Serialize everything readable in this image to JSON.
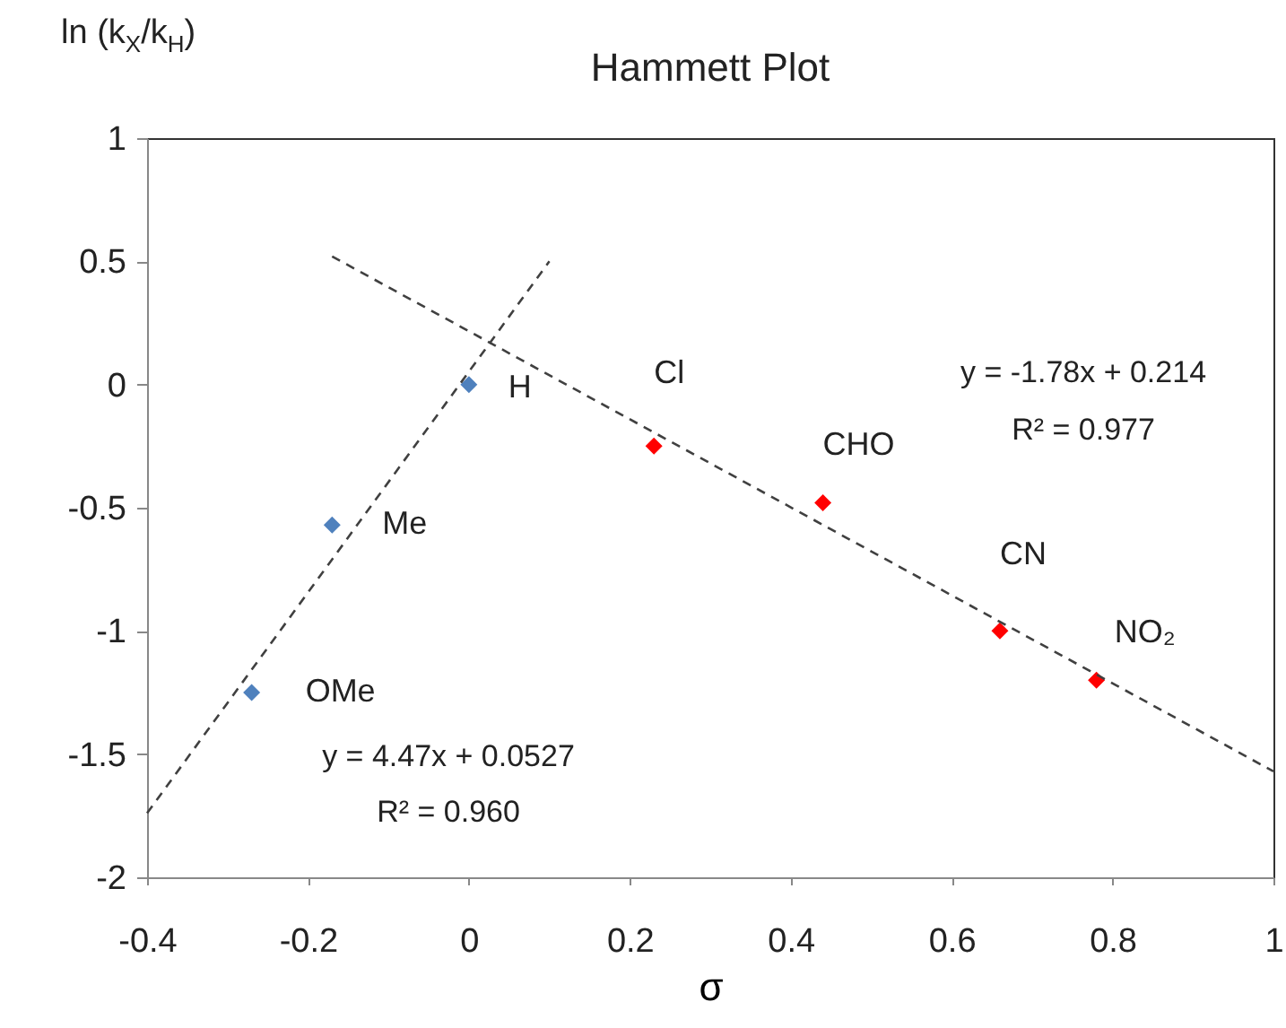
{
  "chart_data": {
    "type": "scatter",
    "title": "Hammett Plot",
    "xlabel": "σ",
    "ylabel": "ln (k$_{X}$/k$_{H}$)",
    "xlim": [
      -0.4,
      1
    ],
    "xticks": [
      -0.4,
      -0.2,
      0,
      0.2,
      0.4,
      0.6,
      0.8,
      1
    ],
    "ylim": [
      -2,
      1
    ],
    "yticks": [
      -2,
      -1.5,
      -1,
      -0.5,
      0,
      0.5,
      1
    ],
    "grid": false,
    "marker": "diamond",
    "line_style": "dashed",
    "series": [
      {
        "color": "#4f81bd",
        "x": [
          -0.27,
          -0.17,
          0
        ],
        "values": [
          -1.25,
          -0.57,
          0
        ]
      },
      {
        "color": "#ff0000",
        "x": [
          0.23,
          0.44,
          0.66,
          0.78
        ],
        "values": [
          -0.25,
          -0.48,
          -1.0,
          -1.2
        ]
      },
      {
        "type": "line",
        "marker": "none",
        "color": "#404040",
        "x": [
          -0.4,
          0.1
        ],
        "values": [
          -1.74,
          0.5
        ]
      },
      {
        "type": "line",
        "marker": "none",
        "color": "#404040",
        "x": [
          -0.17,
          1
        ],
        "values": [
          0.52,
          -1.57
        ]
      }
    ],
    "annotations": [
      {
        "text": "OMe",
        "x": -0.27,
        "y": -1.25
      },
      {
        "text": "Me",
        "x": -0.17,
        "y": -0.57
      },
      {
        "text": "H",
        "x": 0,
        "y": 0
      },
      {
        "text": "Cl",
        "x": 0.23,
        "y": -0.25
      },
      {
        "text": "CHO",
        "x": 0.44,
        "y": -0.48
      },
      {
        "text": "CN",
        "x": 0.66,
        "y": -1.0
      },
      {
        "text": "NO₂",
        "x": 0.78,
        "y": -1.2
      },
      "y = 4.47x + 0.0527",
      "R² = 0.960",
      "y = -1.78x + 0.214",
      "R² = 0.977"
    ]
  }
}
